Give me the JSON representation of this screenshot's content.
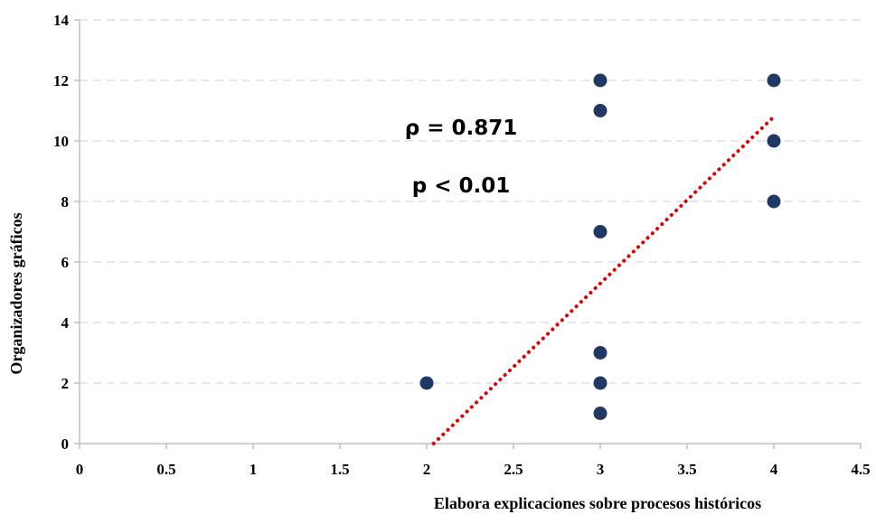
{
  "chart_data": {
    "type": "scatter",
    "title": "",
    "xlabel": "Elabora explicaciones sobre procesos históricos",
    "ylabel": "Organizadores gráficos",
    "xlim": [
      0,
      4.5
    ],
    "ylim": [
      0,
      14
    ],
    "x_ticks": [
      "0",
      "0.5",
      "1",
      "1.5",
      "2",
      "2.5",
      "3",
      "3.5",
      "4",
      "4.5"
    ],
    "y_ticks": [
      "0",
      "2",
      "4",
      "6",
      "8",
      "10",
      "12",
      "14"
    ],
    "grid": "horizontal dashed",
    "points": [
      {
        "x": 2,
        "y": 2
      },
      {
        "x": 3,
        "y": 12
      },
      {
        "x": 3,
        "y": 11
      },
      {
        "x": 3,
        "y": 7
      },
      {
        "x": 3,
        "y": 3
      },
      {
        "x": 3,
        "y": 2
      },
      {
        "x": 3,
        "y": 1
      },
      {
        "x": 4,
        "y": 12
      },
      {
        "x": 4,
        "y": 10
      },
      {
        "x": 4,
        "y": 8
      }
    ],
    "trendline": {
      "type": "linear",
      "start": {
        "x": 2.04,
        "y": 0
      },
      "end": {
        "x": 4,
        "y": 10.8
      }
    },
    "annotations": [
      "ρ = 0.871",
      "p < 0.01"
    ],
    "colors": {
      "points": "#1f3864",
      "trendline": "#e00000",
      "grid": "#d9e1ee",
      "axis": "#bfbfbf"
    }
  }
}
